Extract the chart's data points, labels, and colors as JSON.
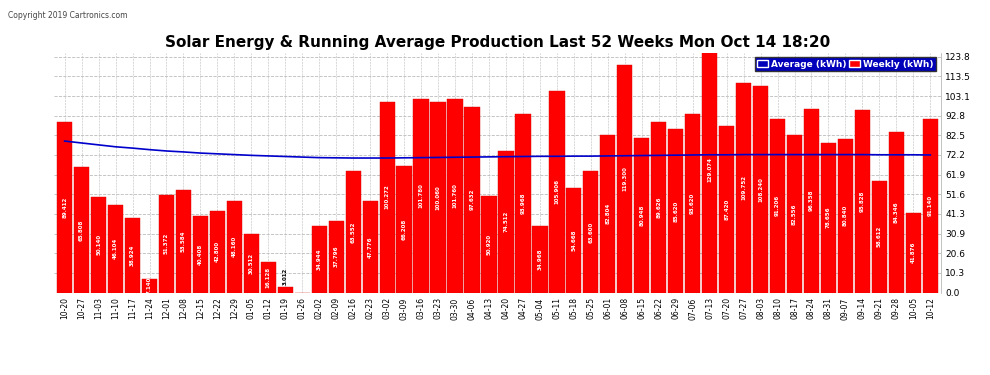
{
  "title": "Solar Energy & Running Average Production Last 52 Weeks Mon Oct 14 18:20",
  "copyright": "Copyright 2019 Cartronics.com",
  "legend_avg": "Average (kWh)",
  "legend_weekly": "Weekly (kWh)",
  "bar_color": "#ff0000",
  "bar_edge_color": "#dd0000",
  "avg_line_color": "#0000cc",
  "background_color": "#ffffff",
  "plot_bg_color": "#ffffff",
  "grid_color": "#bbbbbb",
  "yticks": [
    0.0,
    10.3,
    20.6,
    30.9,
    41.3,
    51.6,
    61.9,
    72.2,
    82.5,
    92.8,
    103.1,
    113.5,
    123.8
  ],
  "xlabels": [
    "10-20",
    "10-27",
    "11-03",
    "11-10",
    "11-17",
    "11-24",
    "12-01",
    "12-08",
    "12-15",
    "12-22",
    "12-29",
    "01-05",
    "01-12",
    "01-19",
    "01-26",
    "02-02",
    "02-09",
    "02-16",
    "02-23",
    "03-02",
    "03-09",
    "03-16",
    "03-23",
    "03-30",
    "04-06",
    "04-13",
    "04-20",
    "04-27",
    "05-04",
    "05-11",
    "05-18",
    "05-25",
    "06-01",
    "06-08",
    "06-15",
    "06-22",
    "06-29",
    "07-06",
    "07-13",
    "07-20",
    "07-27",
    "08-03",
    "08-10",
    "08-17",
    "08-24",
    "08-31",
    "09-07",
    "09-14",
    "09-21",
    "09-28",
    "10-05",
    "10-12"
  ],
  "weekly_values": [
    89.412,
    65.808,
    50.14,
    46.104,
    38.924,
    7.14,
    51.372,
    53.584,
    40.408,
    42.8,
    48.16,
    30.512,
    16.128,
    3.012,
    0.0,
    34.944,
    37.796,
    63.552,
    47.776,
    100.272,
    66.208,
    101.78,
    100.06,
    101.76,
    97.632,
    50.92,
    74.512,
    93.968,
    34.968,
    105.906,
    54.668,
    63.6,
    82.804,
    119.3,
    80.948,
    89.626,
    85.62,
    93.62,
    129.074,
    87.42,
    109.752,
    108.24,
    91.206,
    82.556,
    96.358,
    78.656,
    80.84,
    95.828,
    58.612,
    84.346,
    41.876,
    91.14
  ],
  "avg_values": [
    79.5,
    78.5,
    77.5,
    76.5,
    75.8,
    75.0,
    74.3,
    73.8,
    73.2,
    72.8,
    72.4,
    72.0,
    71.7,
    71.4,
    71.1,
    70.8,
    70.7,
    70.6,
    70.6,
    70.6,
    70.7,
    70.8,
    70.9,
    71.0,
    71.1,
    71.2,
    71.3,
    71.4,
    71.5,
    71.5,
    71.6,
    71.6,
    71.7,
    71.8,
    71.9,
    72.0,
    72.1,
    72.2,
    72.3,
    72.3,
    72.4,
    72.4,
    72.4,
    72.4,
    72.4,
    72.4,
    72.4,
    72.4,
    72.3,
    72.3,
    72.3,
    72.2
  ],
  "ylim": [
    0,
    126
  ],
  "title_fontsize": 11,
  "tick_fontsize": 6.5,
  "xlabel_fontsize": 5.5,
  "label_fontsize": 4.0
}
